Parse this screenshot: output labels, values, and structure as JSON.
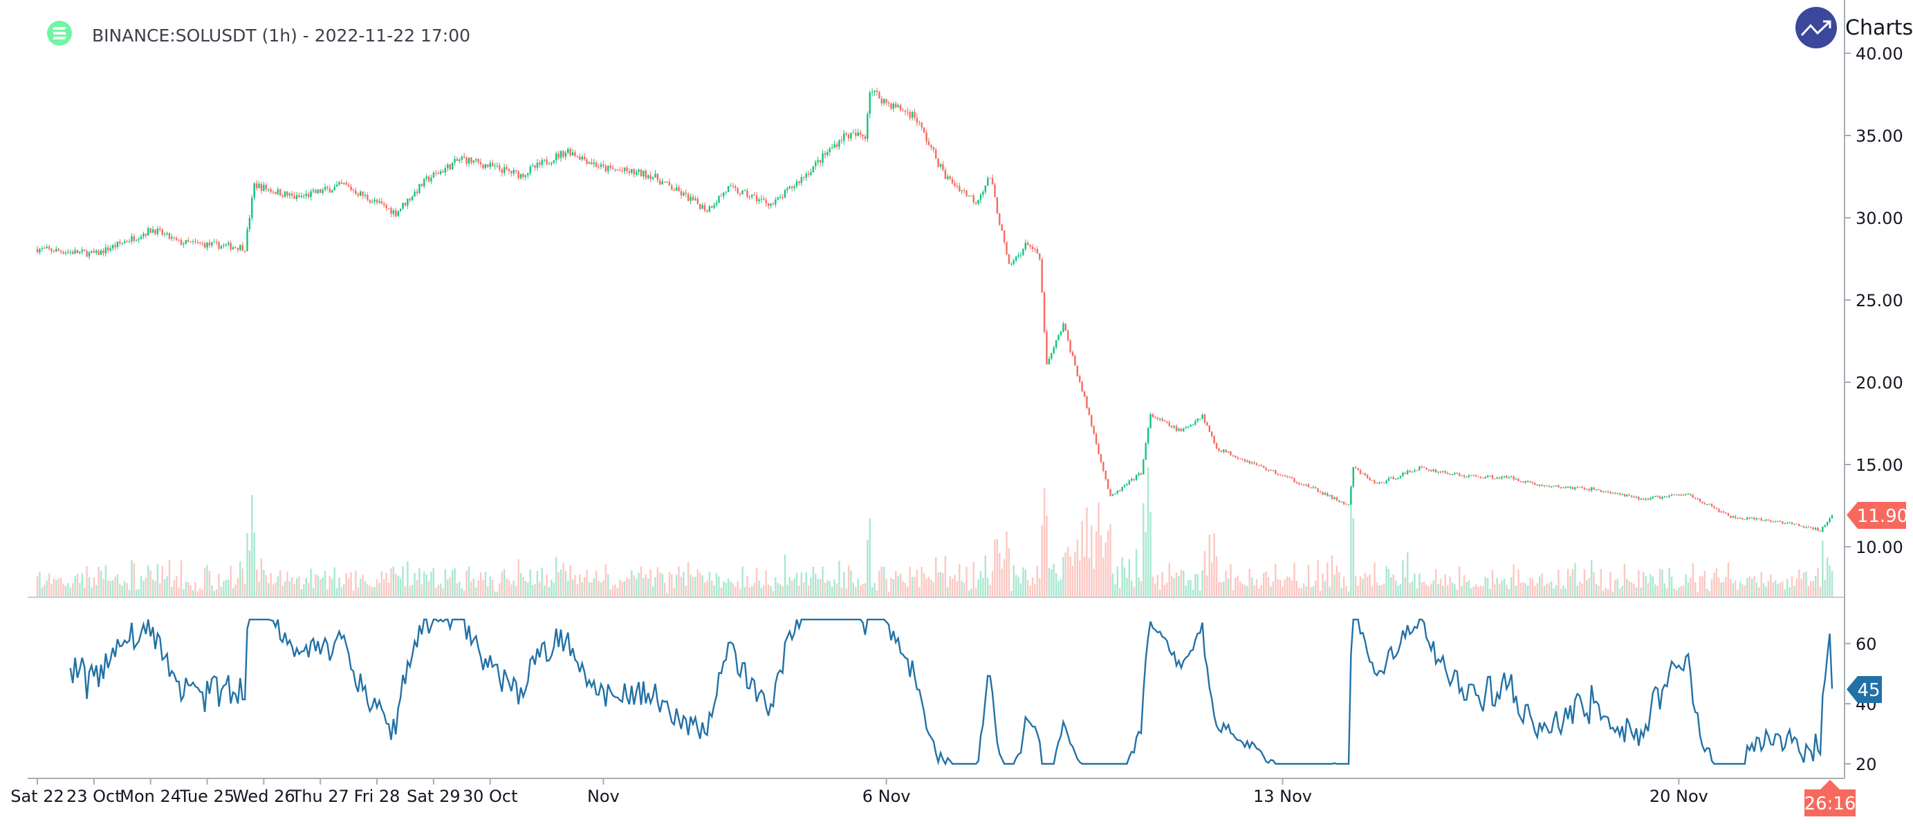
{
  "header": {
    "title": "BINANCE:SOLUSDT (1h) - 2022-11-22 17:00",
    "logo_icon": "solana-logo-icon",
    "brand_icon": "trending-up-icon",
    "brand_text": "Charts p"
  },
  "colors": {
    "up": "#0ec47c",
    "down": "#f7695e",
    "up_volume": "#a8e8d0",
    "down_volume": "#fcc7c2",
    "rsi": "#2271a6",
    "brand": "#3a479a",
    "logo": "#6ff5a4",
    "axis": "#a7adb5"
  },
  "chart_data": {
    "type": "candlestick",
    "title": "BINANCE:SOLUSDT (1h) - 2022-11-22 17:00",
    "start": "2022-10-22 00:00",
    "interval": "1h",
    "bars": 762,
    "close_path": [
      [
        0,
        28.1
      ],
      [
        25,
        27.8
      ],
      [
        49,
        29.3
      ],
      [
        60,
        28.5
      ],
      [
        88,
        28.2
      ],
      [
        92,
        32.0
      ],
      [
        110,
        31.2
      ],
      [
        130,
        32.0
      ],
      [
        140,
        31.2
      ],
      [
        152,
        30.3
      ],
      [
        165,
        32.3
      ],
      [
        180,
        33.6
      ],
      [
        205,
        32.6
      ],
      [
        225,
        34.1
      ],
      [
        240,
        33.0
      ],
      [
        260,
        32.6
      ],
      [
        284,
        30.5
      ],
      [
        293,
        31.8
      ],
      [
        312,
        30.8
      ],
      [
        327,
        32.8
      ],
      [
        342,
        35.0
      ],
      [
        351,
        35.0
      ],
      [
        353,
        37.8
      ],
      [
        360,
        37.0
      ],
      [
        372,
        36.2
      ],
      [
        385,
        32.5
      ],
      [
        398,
        31.0
      ],
      [
        404,
        32.5
      ],
      [
        412,
        27.0
      ],
      [
        420,
        28.5
      ],
      [
        425,
        27.5
      ],
      [
        428,
        21.0
      ],
      [
        435,
        23.5
      ],
      [
        445,
        18.5
      ],
      [
        455,
        13.0
      ],
      [
        468,
        14.5
      ],
      [
        472,
        18.0
      ],
      [
        485,
        17.0
      ],
      [
        494,
        18.0
      ],
      [
        500,
        16.0
      ],
      [
        520,
        14.8
      ],
      [
        540,
        13.6
      ],
      [
        556,
        12.5
      ],
      [
        558,
        14.8
      ],
      [
        568,
        13.8
      ],
      [
        586,
        14.8
      ],
      [
        605,
        14.3
      ],
      [
        625,
        14.2
      ],
      [
        638,
        13.7
      ],
      [
        660,
        13.5
      ],
      [
        680,
        12.9
      ],
      [
        700,
        13.2
      ],
      [
        718,
        11.8
      ],
      [
        740,
        11.5
      ],
      [
        756,
        11.0
      ],
      [
        761,
        11.9
      ]
    ],
    "price_axis": {
      "ticks": [
        "40.00",
        "35.00",
        "30.00",
        "25.00",
        "20.00",
        "15.00",
        "10.00"
      ],
      "range": [
        7.4,
        40.0
      ]
    },
    "last_price": "11.90",
    "countdown": "26:16",
    "rsi": {
      "ticks": [
        "60",
        "40",
        "20"
      ],
      "range": [
        16,
        66
      ],
      "last": "45"
    },
    "time_axis": [
      {
        "label": "Sat 22",
        "hour": 0
      },
      {
        "label": "23 Oct",
        "hour": 24
      },
      {
        "label": "Mon 24",
        "hour": 48
      },
      {
        "label": "Tue 25",
        "hour": 72
      },
      {
        "label": "Wed 26",
        "hour": 96
      },
      {
        "label": "Thu 27",
        "hour": 120
      },
      {
        "label": "Fri 28",
        "hour": 144
      },
      {
        "label": "Sat 29",
        "hour": 168
      },
      {
        "label": "30 Oct",
        "hour": 192
      },
      {
        "label": "Nov",
        "hour": 240
      },
      {
        "label": "6 Nov",
        "hour": 360
      },
      {
        "label": "13 Nov",
        "hour": 528
      },
      {
        "label": "20 Nov",
        "hour": 696
      }
    ]
  }
}
